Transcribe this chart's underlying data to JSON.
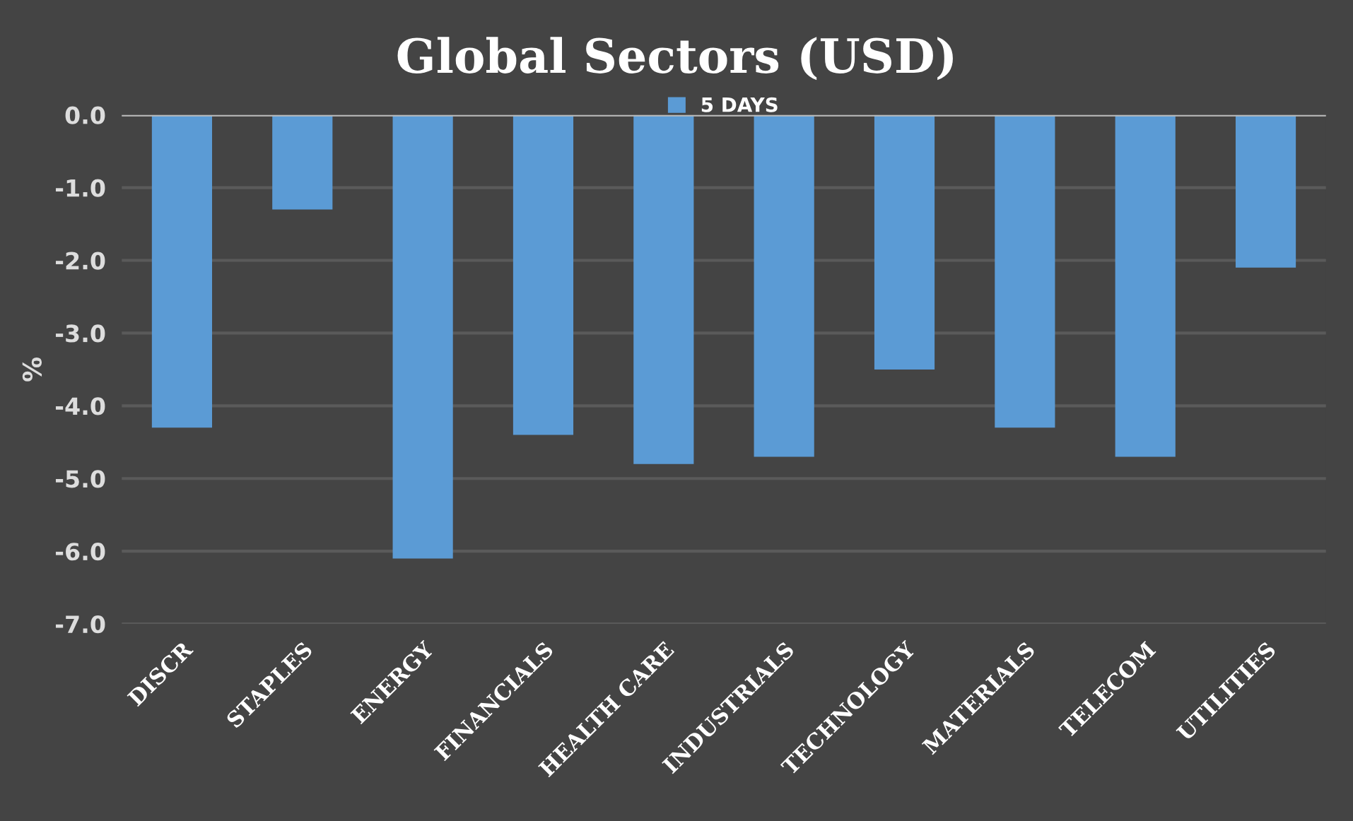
{
  "chart_data": {
    "type": "bar",
    "title": "Global Sectors (USD)",
    "ylabel": "%",
    "categories": [
      "DISCR",
      "STAPLES",
      "ENERGY",
      "FINANCIALS",
      "HEALTH CARE",
      "INDUSTRIALS",
      "TECHNOLOGY",
      "MATERIALS",
      "TELECOM",
      "UTILITIES"
    ],
    "series": [
      {
        "name": "5 DAYS",
        "color": "#5b9bd5",
        "values": [
          -4.3,
          -1.3,
          -6.1,
          -4.4,
          -4.8,
          -4.7,
          -3.5,
          -4.3,
          -4.7,
          -2.1
        ]
      }
    ],
    "ylim": [
      -7,
      0
    ],
    "yticks": [
      {
        "value": 0,
        "label": "0.0"
      },
      {
        "value": -1,
        "label": "-1.0"
      },
      {
        "value": -2,
        "label": "-2.0"
      },
      {
        "value": -3,
        "label": "-3.0"
      },
      {
        "value": -4,
        "label": "-4.0"
      },
      {
        "value": -5,
        "label": "-5.0"
      },
      {
        "value": -6,
        "label": "-6.0"
      },
      {
        "value": -7,
        "label": "-7.0"
      }
    ],
    "grid": "y",
    "legend": "top"
  }
}
